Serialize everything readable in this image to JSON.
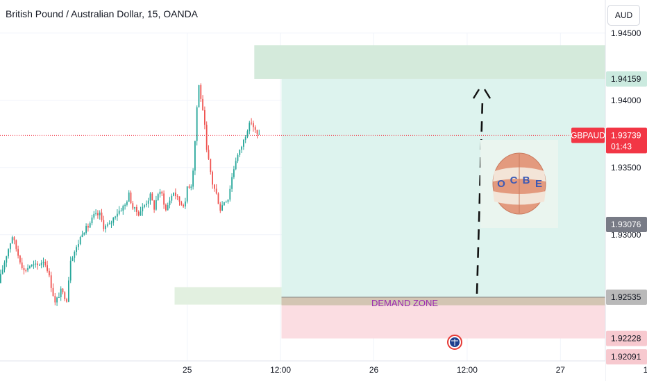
{
  "header": {
    "title": "British Pound / Australian Dollar, 15, OANDA",
    "currency_button": "AUD"
  },
  "price_axis": {
    "ticks": [
      "1.94500",
      "1.94000",
      "1.93500",
      "1.93000"
    ],
    "labels": [
      {
        "price": 1.94159,
        "text": "1.94159",
        "style": "target"
      },
      {
        "price": 1.93076,
        "text": "1.93076",
        "style": "gray"
      },
      {
        "price": 1.92535,
        "text": "1.92535",
        "style": "entry"
      },
      {
        "price": 1.92228,
        "text": "1.92228",
        "style": "stop"
      },
      {
        "price": 1.92091,
        "text": "1.92091",
        "style": "stop"
      }
    ],
    "last_price": {
      "symbol": "GBPAUD",
      "price": "1.93739",
      "countdown": "01:43",
      "value": 1.93739
    }
  },
  "time_axis": {
    "ticks": [
      "25",
      "12:00",
      "26",
      "12:00",
      "27",
      "12:00"
    ]
  },
  "annotations": {
    "demand_zone_label": "DEMAND ZONE",
    "logo_text": "OCBE",
    "logo_letters": [
      "O",
      "C",
      "B",
      "E"
    ]
  },
  "colors": {
    "up": "#26a69a",
    "down": "#ef5350",
    "target_zone": "#d4eadb",
    "profit_zone": "#ddf3ee",
    "stop_zone": "#fbdde2",
    "demand_zone": "#e2f0e0",
    "entry_band": "#d3c5b3",
    "demand_text": "#9c27b0",
    "last_price_bg": "#f23645",
    "target_label_bg": "#cbeadf",
    "entry_label_bg": "#b9b9b9",
    "stop_label_bg": "#f7c9cf",
    "gray_label_bg": "#787b86"
  },
  "chart_data": {
    "type": "candlestick",
    "symbol": "GBPAUD",
    "interval": "15",
    "source": "OANDA",
    "ylim": [
      1.9203,
      1.9462
    ],
    "levels": {
      "target": 1.94159,
      "entry": 1.92535,
      "stop": 1.92228,
      "last": 1.93739
    },
    "zones": [
      {
        "name": "target-zone",
        "from_time": 130.5,
        "to_time": 250,
        "low": 1.94159,
        "high": 1.9441
      },
      {
        "name": "demand-zone",
        "from_time": 89.5,
        "to_time": 250,
        "low": 1.9248,
        "high": 1.9261
      },
      {
        "name": "profit-zone",
        "from_time": 144.5,
        "to_time": 250,
        "low": 1.92535,
        "high": 1.94159
      },
      {
        "name": "stop-zone",
        "from_time": 144.5,
        "to_time": 250,
        "low": 1.92228,
        "high": 1.92535
      }
    ],
    "time_ticks": [
      {
        "label": "25",
        "index": 96
      },
      {
        "label": "12:00",
        "index": 144
      },
      {
        "label": "26",
        "index": 192
      },
      {
        "label": "12:00",
        "index": 240
      },
      {
        "label": "27",
        "index": 288
      },
      {
        "label": "12:00",
        "index": 336
      }
    ],
    "price_path": [
      [
        0,
        1.9264
      ],
      [
        4,
        1.9285
      ],
      [
        7,
        1.9299
      ],
      [
        10,
        1.9285
      ],
      [
        13,
        1.9273
      ],
      [
        16,
        1.9277
      ],
      [
        20,
        1.9277
      ],
      [
        23,
        1.9281
      ],
      [
        25,
        1.9275
      ],
      [
        27,
        1.9262
      ],
      [
        29,
        1.9249
      ],
      [
        32,
        1.9258
      ],
      [
        35,
        1.9252
      ],
      [
        37,
        1.9282
      ],
      [
        40,
        1.929
      ],
      [
        43,
        1.9302
      ],
      [
        46,
        1.9306
      ],
      [
        49,
        1.9314
      ],
      [
        52,
        1.9315
      ],
      [
        54,
        1.9306
      ],
      [
        57,
        1.9307
      ],
      [
        60,
        1.9315
      ],
      [
        62,
        1.9318
      ],
      [
        65,
        1.9322
      ],
      [
        67,
        1.933
      ],
      [
        69,
        1.932
      ],
      [
        72,
        1.9316
      ],
      [
        75,
        1.9322
      ],
      [
        78,
        1.9329
      ],
      [
        80,
        1.932
      ],
      [
        82,
        1.9331
      ],
      [
        84,
        1.933
      ],
      [
        86,
        1.9318
      ],
      [
        88,
        1.9326
      ],
      [
        90,
        1.9332
      ],
      [
        92,
        1.9327
      ],
      [
        94,
        1.9323
      ],
      [
        96,
        1.9323
      ],
      [
        97,
        1.9336
      ],
      [
        99,
        1.9337
      ],
      [
        100,
        1.9349
      ],
      [
        101,
        1.937
      ],
      [
        102,
        1.9395
      ],
      [
        103,
        1.9411
      ],
      [
        104,
        1.9402
      ],
      [
        106,
        1.938
      ],
      [
        107,
        1.9362
      ],
      [
        108,
        1.9355
      ],
      [
        110,
        1.9338
      ],
      [
        112,
        1.933
      ],
      [
        114,
        1.9319
      ],
      [
        116,
        1.9325
      ],
      [
        118,
        1.9327
      ],
      [
        120,
        1.9343
      ],
      [
        122,
        1.9356
      ],
      [
        124,
        1.9362
      ],
      [
        126,
        1.937
      ],
      [
        128,
        1.9379
      ],
      [
        130,
        1.9384
      ],
      [
        132,
        1.9377
      ],
      [
        133,
        1.9374
      ]
    ],
    "candle_count": 134,
    "candle_seed": 17
  }
}
